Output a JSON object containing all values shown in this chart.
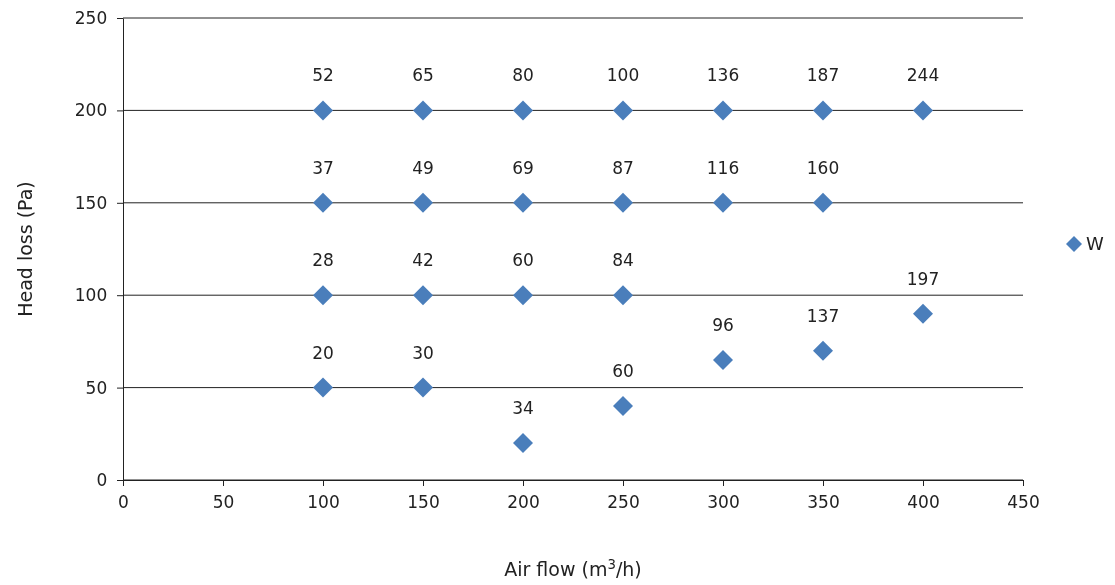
{
  "chart_data": {
    "type": "scatter",
    "xlabel": "Air flow (m$^{3}$/h)",
    "ylabel": "Head loss (Pa)",
    "xlim": [
      0,
      450
    ],
    "xticks": [
      0,
      50,
      100,
      150,
      200,
      250,
      300,
      350,
      400,
      450
    ],
    "ylim": [
      0,
      250
    ],
    "yticks": [
      0,
      50,
      100,
      150,
      200,
      250
    ],
    "grid": "y",
    "legend": "right",
    "marker": "diamond",
    "series": [
      {
        "name": "W",
        "color": "#4a7ebb",
        "x": [
          100,
          150,
          200,
          250,
          300,
          350,
          400,
          100,
          150,
          200,
          250,
          300,
          350,
          100,
          150,
          200,
          250,
          400,
          100,
          150,
          200,
          250,
          300,
          350
        ],
        "values": [
          200,
          200,
          200,
          200,
          200,
          200,
          200,
          150,
          150,
          150,
          150,
          150,
          150,
          100,
          100,
          100,
          100,
          90,
          50,
          50,
          20,
          40,
          65,
          70
        ]
      }
    ],
    "annotations": [
      {
        "text": "52",
        "x": 100,
        "y": 200
      },
      {
        "text": "65",
        "x": 150,
        "y": 200
      },
      {
        "text": "80",
        "x": 200,
        "y": 200
      },
      {
        "text": "100",
        "x": 250,
        "y": 200
      },
      {
        "text": "136",
        "x": 300,
        "y": 200
      },
      {
        "text": "187",
        "x": 350,
        "y": 200
      },
      {
        "text": "244",
        "x": 400,
        "y": 200
      },
      {
        "text": "37",
        "x": 100,
        "y": 150
      },
      {
        "text": "49",
        "x": 150,
        "y": 150
      },
      {
        "text": "69",
        "x": 200,
        "y": 150
      },
      {
        "text": "87",
        "x": 250,
        "y": 150
      },
      {
        "text": "116",
        "x": 300,
        "y": 150
      },
      {
        "text": "160",
        "x": 350,
        "y": 150
      },
      {
        "text": "28",
        "x": 100,
        "y": 100
      },
      {
        "text": "42",
        "x": 150,
        "y": 100
      },
      {
        "text": "60",
        "x": 200,
        "y": 100
      },
      {
        "text": "84",
        "x": 250,
        "y": 100
      },
      {
        "text": "197",
        "x": 400,
        "y": 90
      },
      {
        "text": "20",
        "x": 100,
        "y": 50
      },
      {
        "text": "30",
        "x": 150,
        "y": 50
      },
      {
        "text": "34",
        "x": 200,
        "y": 20
      },
      {
        "text": "60",
        "x": 250,
        "y": 40
      },
      {
        "text": "96",
        "x": 300,
        "y": 65
      },
      {
        "text": "137",
        "x": 350,
        "y": 70
      }
    ]
  }
}
